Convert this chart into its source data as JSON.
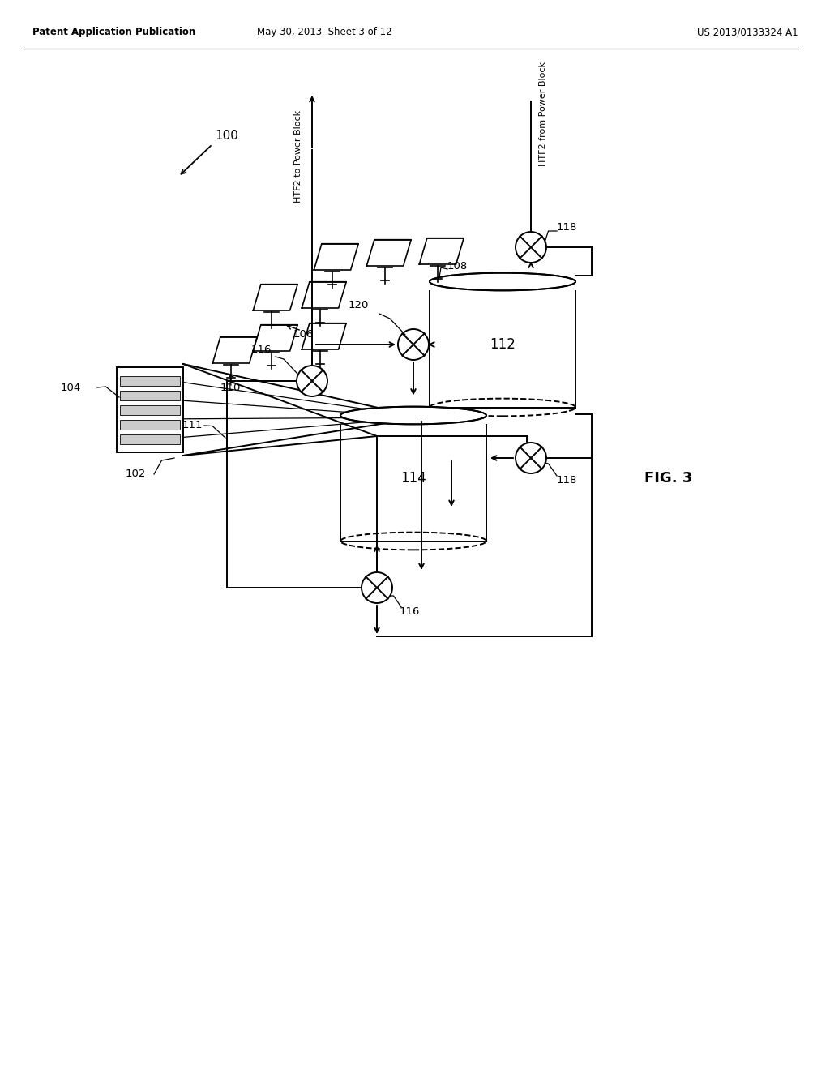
{
  "bg_color": "#ffffff",
  "header_left": "Patent Application Publication",
  "header_mid": "May 30, 2013  Sheet 3 of 12",
  "header_right": "US 2013/0133324 A1",
  "fig_label": "FIG. 3",
  "htf2_to_label": "HTF2 to Power Block",
  "htf2_from_label": "HTF2 from Power Block",
  "lw": 1.4,
  "lw_thin": 0.9
}
